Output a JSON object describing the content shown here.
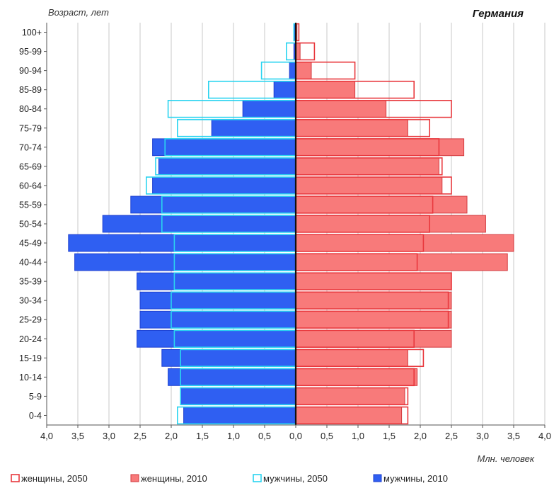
{
  "chart_data": {
    "type": "bar",
    "title": "Германия",
    "ylabel": "Возраст, лет",
    "xlabel": "Млн. человек",
    "orientation": "horizontal-population-pyramid",
    "xlim": [
      -4.0,
      4.0
    ],
    "x_ticks": [
      "4,0",
      "3,5",
      "3,0",
      "2,5",
      "2,0",
      "1,5",
      "1,0",
      "0,5",
      "0,0",
      "0,5",
      "1,0",
      "1,5",
      "2,0",
      "2,5",
      "3,0",
      "3,5",
      "4,0"
    ],
    "grid": "vertical",
    "legend_position": "bottom",
    "categories": [
      "0-4",
      "5-9",
      "10-14",
      "15-19",
      "20-24",
      "25-29",
      "30-34",
      "35-39",
      "40-44",
      "45-49",
      "50-54",
      "55-59",
      "60-64",
      "65-69",
      "70-74",
      "75-79",
      "80-84",
      "85-89",
      "90-94",
      "95-99",
      "100+"
    ],
    "series": [
      {
        "name": "женщины, 2050",
        "side": "right",
        "style": "outline",
        "color": "#e8383d",
        "values": [
          1.8,
          1.8,
          1.9,
          2.05,
          1.9,
          2.45,
          2.45,
          2.5,
          1.95,
          2.05,
          2.15,
          2.2,
          2.5,
          2.35,
          2.3,
          2.15,
          2.5,
          1.9,
          0.95,
          0.3,
          0.05
        ]
      },
      {
        "name": "женщины, 2010",
        "side": "right",
        "style": "filled",
        "color": "#f87a7a",
        "values": [
          1.7,
          1.75,
          1.95,
          1.8,
          2.5,
          2.5,
          2.5,
          2.5,
          3.4,
          3.5,
          3.05,
          2.75,
          2.35,
          2.3,
          2.7,
          1.8,
          1.45,
          0.95,
          0.25,
          0.07,
          0.02
        ]
      },
      {
        "name": "мужчины, 2050",
        "side": "left",
        "style": "outline",
        "color": "#2ad4f0",
        "values": [
          1.9,
          1.85,
          1.85,
          1.85,
          1.95,
          2.0,
          2.0,
          1.95,
          1.95,
          1.95,
          2.15,
          2.15,
          2.4,
          2.25,
          2.1,
          1.9,
          2.05,
          1.4,
          0.55,
          0.15,
          0.03
        ]
      },
      {
        "name": "мужчины, 2010",
        "side": "left",
        "style": "filled",
        "color": "#2f5ff2",
        "values": [
          1.8,
          1.85,
          2.05,
          2.15,
          2.55,
          2.5,
          2.5,
          2.55,
          3.55,
          3.65,
          3.1,
          2.65,
          2.3,
          2.2,
          2.3,
          1.35,
          0.85,
          0.35,
          0.1,
          0.03,
          0.03
        ]
      }
    ]
  }
}
